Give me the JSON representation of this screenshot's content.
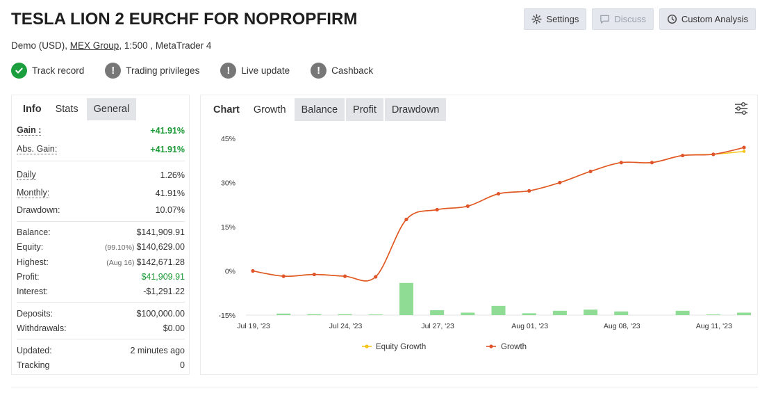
{
  "header": {
    "title": "TESLA LION 2 EURCHF FOR NOPROPFIRM",
    "account_prefix": "Demo (USD),",
    "broker": "MEX Group",
    "account_suffix": ", 1:500 , MetaTrader 4"
  },
  "toolbar": {
    "settings": "Settings",
    "discuss": "Discuss",
    "custom_analysis": "Custom Analysis"
  },
  "badges": [
    {
      "label": "Track record",
      "status": "verified"
    },
    {
      "label": "Trading privileges",
      "status": "unverified"
    },
    {
      "label": "Live update",
      "status": "unverified"
    },
    {
      "label": "Cashback",
      "status": "unverified"
    }
  ],
  "info_tabs": [
    "Info",
    "Stats",
    "General"
  ],
  "info": {
    "gain": {
      "label": "Gain :",
      "value": "+41.91%"
    },
    "abs_gain": {
      "label": "Abs. Gain:",
      "value": "+41.91%"
    },
    "daily": {
      "label": "Daily",
      "value": "1.26%"
    },
    "monthly": {
      "label": "Monthly:",
      "value": "41.91%"
    },
    "drawdown": {
      "label": "Drawdown:",
      "value": "10.07%"
    },
    "balance": {
      "label": "Balance:",
      "value": "$141,909.91"
    },
    "equity": {
      "label": "Equity:",
      "note": "(99.10%)",
      "value": "$140,629.00"
    },
    "highest": {
      "label": "Highest:",
      "note": "(Aug 16)",
      "value": "$142,671.28"
    },
    "profit": {
      "label": "Profit:",
      "value": "$41,909.91"
    },
    "interest": {
      "label": "Interest:",
      "value": "-$1,291.22"
    },
    "deposits": {
      "label": "Deposits:",
      "value": "$100,000.00"
    },
    "withdrawals": {
      "label": "Withdrawals:",
      "value": "$0.00"
    },
    "updated": {
      "label": "Updated:",
      "value": "2 minutes ago"
    },
    "tracking": {
      "label": "Tracking",
      "value": "0"
    }
  },
  "chart_tabs": [
    "Chart",
    "Growth",
    "Balance",
    "Profit",
    "Drawdown"
  ],
  "colors": {
    "growth": "#e0542a",
    "equity": "#f5c518",
    "bars": "#8fdc95",
    "green_text": "#1c9a37",
    "verified": "#1b9e3e"
  },
  "chart_data": {
    "type": "line",
    "title": "Growth",
    "ylabel": "",
    "xlabel": "",
    "ylim": [
      -15,
      45
    ],
    "y_ticks": [
      "45%",
      "30%",
      "15%",
      "0%",
      "-15%"
    ],
    "y_tick_values": [
      45,
      30,
      15,
      0,
      -15
    ],
    "x_tick_labels": [
      "Jul 19, '23",
      "Jul 24, '23",
      "Jul 27, '23",
      "Aug 01, '23",
      "Aug 08, '23",
      "Aug 11, '23"
    ],
    "x_tick_index": [
      0,
      3,
      6,
      9,
      12,
      15
    ],
    "series": [
      {
        "name": "Growth",
        "values": [
          0,
          -1.8,
          -1.2,
          -1.8,
          -2.0,
          17.5,
          20.8,
          22.0,
          26.2,
          27.2,
          30.0,
          33.8,
          36.8,
          36.8,
          39.2,
          39.6,
          41.91
        ]
      },
      {
        "name": "Equity Growth",
        "values": [
          0,
          -1.8,
          -1.2,
          -1.8,
          -2.0,
          17.5,
          20.8,
          22.0,
          26.2,
          27.2,
          30.0,
          33.8,
          36.8,
          36.8,
          39.2,
          39.6,
          40.6
        ]
      }
    ],
    "bars": {
      "name": "Daily",
      "values": [
        0,
        0.5,
        0.3,
        0.3,
        0.2,
        10.5,
        1.6,
        0.8,
        3.0,
        0.6,
        1.4,
        1.8,
        1.2,
        0,
        1.4,
        0.2,
        0.8
      ]
    },
    "legend": [
      "Equity Growth",
      "Growth"
    ]
  }
}
